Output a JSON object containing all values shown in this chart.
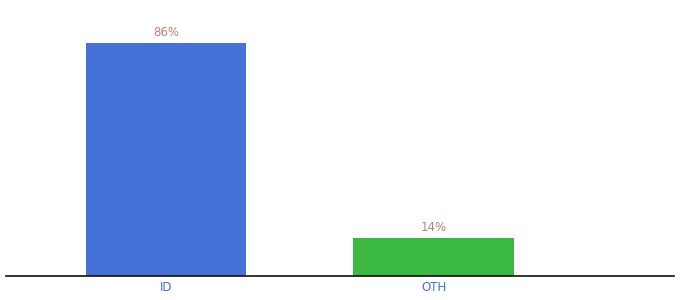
{
  "categories": [
    "ID",
    "OTH"
  ],
  "values": [
    86,
    14
  ],
  "bar_colors": [
    "#4472D9",
    "#3CB940"
  ],
  "label_color": "#c08070",
  "label_fontsize": 8.5,
  "xlabel_fontsize": 8.5,
  "xlabel_color": "#4472D9",
  "background_color": "#ffffff",
  "ylim": [
    0,
    100
  ],
  "bar_width": 0.18,
  "x_positions": [
    0.28,
    0.58
  ],
  "xlim": [
    0.1,
    0.85
  ]
}
